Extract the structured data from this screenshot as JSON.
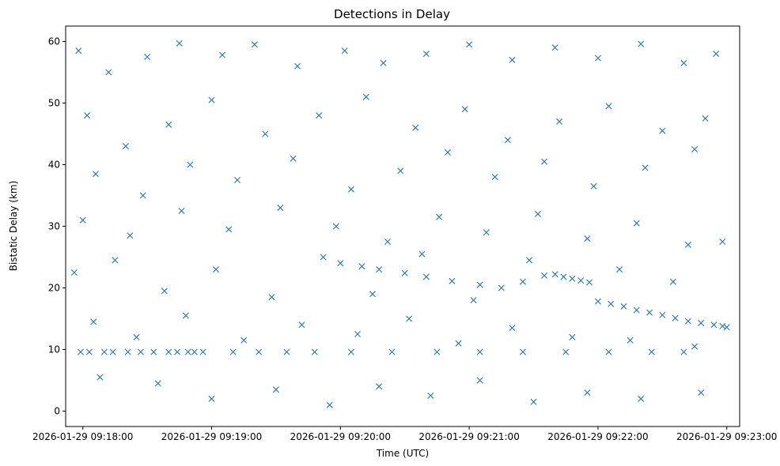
{
  "chart_data": {
    "type": "scatter",
    "title": "Detections in Delay",
    "xlabel": "Time (UTC)",
    "ylabel": "Bistatic Delay (km)",
    "x_axis_type": "time",
    "xlim": [
      "2026-01-29 09:17:52",
      "2026-01-29 09:23:06"
    ],
    "ylim": [
      -2.5,
      62.5
    ],
    "x_ticks": [
      "2026-01-29 09:18:00",
      "2026-01-29 09:19:00",
      "2026-01-29 09:20:00",
      "2026-01-29 09:21:00",
      "2026-01-29 09:22:00",
      "2026-01-29 09:23:00"
    ],
    "y_ticks": [
      0,
      10,
      20,
      30,
      40,
      50,
      60
    ],
    "grid": false,
    "legend": "none",
    "marker": "x",
    "color": "#1f77b4",
    "series": [
      {
        "points": [
          [
            "2026-01-29 09:17:59",
            9.6
          ],
          [
            "2026-01-29 09:18:03",
            9.6
          ],
          [
            "2026-01-29 09:18:10",
            9.6
          ],
          [
            "2026-01-29 09:18:14",
            9.6
          ],
          [
            "2026-01-29 09:18:21",
            9.6
          ],
          [
            "2026-01-29 09:18:27",
            9.6
          ],
          [
            "2026-01-29 09:18:33",
            9.6
          ],
          [
            "2026-01-29 09:18:40",
            9.6
          ],
          [
            "2026-01-29 09:18:44",
            9.6
          ],
          [
            "2026-01-29 09:18:49",
            9.6
          ],
          [
            "2026-01-29 09:18:52",
            9.6
          ],
          [
            "2026-01-29 09:18:56",
            9.6
          ],
          [
            "2026-01-29 09:19:10",
            9.6
          ],
          [
            "2026-01-29 09:19:22",
            9.6
          ],
          [
            "2026-01-29 09:19:35",
            9.6
          ],
          [
            "2026-01-29 09:19:48",
            9.6
          ],
          [
            "2026-01-29 09:20:05",
            9.6
          ],
          [
            "2026-01-29 09:20:24",
            9.6
          ],
          [
            "2026-01-29 09:20:45",
            9.6
          ],
          [
            "2026-01-29 09:21:05",
            9.6
          ],
          [
            "2026-01-29 09:21:25",
            9.6
          ],
          [
            "2026-01-29 09:21:45",
            9.6
          ],
          [
            "2026-01-29 09:22:05",
            9.6
          ],
          [
            "2026-01-29 09:22:25",
            9.6
          ],
          [
            "2026-01-29 09:22:40",
            9.6
          ],
          [
            "2026-01-29 09:20:00",
            24.0
          ],
          [
            "2026-01-29 09:20:10",
            23.5
          ],
          [
            "2026-01-29 09:20:18",
            23.0
          ],
          [
            "2026-01-29 09:20:30",
            22.4
          ],
          [
            "2026-01-29 09:20:40",
            21.8
          ],
          [
            "2026-01-29 09:20:52",
            21.1
          ],
          [
            "2026-01-29 09:21:05",
            20.5
          ],
          [
            "2026-01-29 09:21:15",
            20.0
          ],
          [
            "2026-01-29 09:21:25",
            21.0
          ],
          [
            "2026-01-29 09:21:35",
            22.0
          ],
          [
            "2026-01-29 09:21:40",
            22.2
          ],
          [
            "2026-01-29 09:21:44",
            21.8
          ],
          [
            "2026-01-29 09:21:48",
            21.5
          ],
          [
            "2026-01-29 09:21:52",
            21.2
          ],
          [
            "2026-01-29 09:21:56",
            20.9
          ],
          [
            "2026-01-29 09:22:00",
            17.8
          ],
          [
            "2026-01-29 09:22:06",
            17.4
          ],
          [
            "2026-01-29 09:22:12",
            17.0
          ],
          [
            "2026-01-29 09:22:18",
            16.4
          ],
          [
            "2026-01-29 09:22:24",
            16.0
          ],
          [
            "2026-01-29 09:22:30",
            15.6
          ],
          [
            "2026-01-29 09:22:36",
            15.1
          ],
          [
            "2026-01-29 09:22:42",
            14.6
          ],
          [
            "2026-01-29 09:22:48",
            14.3
          ],
          [
            "2026-01-29 09:22:54",
            14.0
          ],
          [
            "2026-01-29 09:22:58",
            13.8
          ],
          [
            "2026-01-29 09:23:00",
            13.6
          ],
          [
            "2026-01-29 09:17:58",
            58.5
          ],
          [
            "2026-01-29 09:18:12",
            55.0
          ],
          [
            "2026-01-29 09:18:30",
            57.5
          ],
          [
            "2026-01-29 09:18:45",
            59.7
          ],
          [
            "2026-01-29 09:19:05",
            57.8
          ],
          [
            "2026-01-29 09:19:20",
            59.5
          ],
          [
            "2026-01-29 09:19:40",
            56.0
          ],
          [
            "2026-01-29 09:20:02",
            58.5
          ],
          [
            "2026-01-29 09:20:20",
            56.5
          ],
          [
            "2026-01-29 09:20:40",
            58.0
          ],
          [
            "2026-01-29 09:21:00",
            59.5
          ],
          [
            "2026-01-29 09:21:20",
            57.0
          ],
          [
            "2026-01-29 09:21:40",
            59.0
          ],
          [
            "2026-01-29 09:22:00",
            57.3
          ],
          [
            "2026-01-29 09:22:20",
            59.6
          ],
          [
            "2026-01-29 09:22:40",
            56.5
          ],
          [
            "2026-01-29 09:22:55",
            58.0
          ],
          [
            "2026-01-29 09:18:02",
            48.0
          ],
          [
            "2026-01-29 09:18:20",
            43.0
          ],
          [
            "2026-01-29 09:18:40",
            46.5
          ],
          [
            "2026-01-29 09:19:00",
            50.5
          ],
          [
            "2026-01-29 09:19:25",
            45.0
          ],
          [
            "2026-01-29 09:19:50",
            48.0
          ],
          [
            "2026-01-29 09:20:12",
            51.0
          ],
          [
            "2026-01-29 09:20:35",
            46.0
          ],
          [
            "2026-01-29 09:20:58",
            49.0
          ],
          [
            "2026-01-29 09:21:18",
            44.0
          ],
          [
            "2026-01-29 09:21:42",
            47.0
          ],
          [
            "2026-01-29 09:22:05",
            49.5
          ],
          [
            "2026-01-29 09:22:30",
            45.5
          ],
          [
            "2026-01-29 09:22:50",
            47.5
          ],
          [
            "2026-01-29 09:18:06",
            38.5
          ],
          [
            "2026-01-29 09:18:28",
            35.0
          ],
          [
            "2026-01-29 09:18:50",
            40.0
          ],
          [
            "2026-01-29 09:19:12",
            37.5
          ],
          [
            "2026-01-29 09:19:38",
            41.0
          ],
          [
            "2026-01-29 09:20:05",
            36.0
          ],
          [
            "2026-01-29 09:20:28",
            39.0
          ],
          [
            "2026-01-29 09:20:50",
            42.0
          ],
          [
            "2026-01-29 09:21:12",
            38.0
          ],
          [
            "2026-01-29 09:21:35",
            40.5
          ],
          [
            "2026-01-29 09:21:58",
            36.5
          ],
          [
            "2026-01-29 09:22:22",
            39.5
          ],
          [
            "2026-01-29 09:22:45",
            42.5
          ],
          [
            "2026-01-29 09:18:00",
            31.0
          ],
          [
            "2026-01-29 09:18:22",
            28.5
          ],
          [
            "2026-01-29 09:18:46",
            32.5
          ],
          [
            "2026-01-29 09:19:08",
            29.5
          ],
          [
            "2026-01-29 09:19:32",
            33.0
          ],
          [
            "2026-01-29 09:19:58",
            30.0
          ],
          [
            "2026-01-29 09:20:22",
            27.5
          ],
          [
            "2026-01-29 09:20:46",
            31.5
          ],
          [
            "2026-01-29 09:21:08",
            29.0
          ],
          [
            "2026-01-29 09:21:32",
            32.0
          ],
          [
            "2026-01-29 09:21:55",
            28.0
          ],
          [
            "2026-01-29 09:22:18",
            30.5
          ],
          [
            "2026-01-29 09:22:42",
            27.0
          ],
          [
            "2026-01-29 09:17:56",
            22.5
          ],
          [
            "2026-01-29 09:18:15",
            24.5
          ],
          [
            "2026-01-29 09:18:38",
            19.5
          ],
          [
            "2026-01-29 09:19:02",
            23.0
          ],
          [
            "2026-01-29 09:19:28",
            18.5
          ],
          [
            "2026-01-29 09:19:52",
            25.0
          ],
          [
            "2026-01-29 09:20:15",
            19.0
          ],
          [
            "2026-01-29 09:20:38",
            25.5
          ],
          [
            "2026-01-29 09:21:02",
            18.0
          ],
          [
            "2026-01-29 09:21:28",
            24.5
          ],
          [
            "2026-01-29 09:22:10",
            23.0
          ],
          [
            "2026-01-29 09:22:35",
            21.0
          ],
          [
            "2026-01-29 09:22:58",
            27.5
          ],
          [
            "2026-01-29 09:18:05",
            14.5
          ],
          [
            "2026-01-29 09:18:25",
            12.0
          ],
          [
            "2026-01-29 09:18:48",
            15.5
          ],
          [
            "2026-01-29 09:19:15",
            11.5
          ],
          [
            "2026-01-29 09:19:42",
            14.0
          ],
          [
            "2026-01-29 09:20:08",
            12.5
          ],
          [
            "2026-01-29 09:20:32",
            15.0
          ],
          [
            "2026-01-29 09:20:55",
            11.0
          ],
          [
            "2026-01-29 09:21:20",
            13.5
          ],
          [
            "2026-01-29 09:21:48",
            12.0
          ],
          [
            "2026-01-29 09:22:15",
            11.5
          ],
          [
            "2026-01-29 09:22:45",
            10.5
          ],
          [
            "2026-01-29 09:18:08",
            5.5
          ],
          [
            "2026-01-29 09:18:35",
            4.5
          ],
          [
            "2026-01-29 09:19:00",
            2.0
          ],
          [
            "2026-01-29 09:19:30",
            3.5
          ],
          [
            "2026-01-29 09:19:55",
            1.0
          ],
          [
            "2026-01-29 09:20:18",
            4.0
          ],
          [
            "2026-01-29 09:20:42",
            2.5
          ],
          [
            "2026-01-29 09:21:05",
            5.0
          ],
          [
            "2026-01-29 09:21:30",
            1.5
          ],
          [
            "2026-01-29 09:21:55",
            3.0
          ],
          [
            "2026-01-29 09:22:20",
            2.0
          ],
          [
            "2026-01-29 09:22:48",
            3.0
          ]
        ]
      }
    ]
  }
}
